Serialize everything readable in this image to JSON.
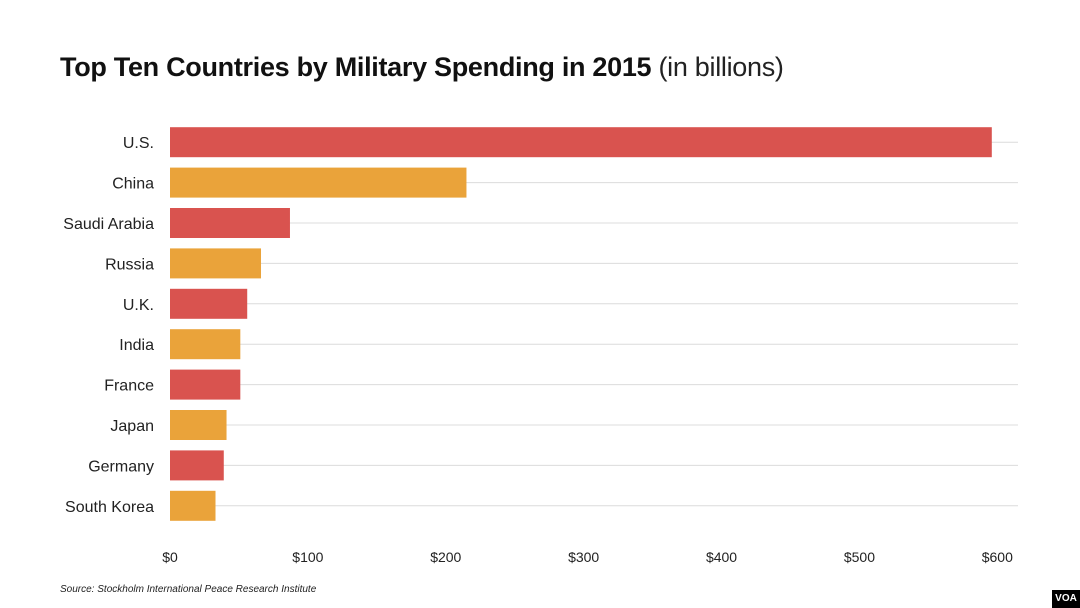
{
  "chart_data": {
    "type": "bar",
    "orientation": "horizontal",
    "title": "Top Ten Countries by Military Spending in 2015",
    "subtitle": "(in billions)",
    "categories": [
      "U.S.",
      "China",
      "Saudi Arabia",
      "Russia",
      "U.K.",
      "India",
      "France",
      "Japan",
      "Germany",
      "South Korea"
    ],
    "values": [
      596,
      215,
      87,
      66,
      56,
      51,
      51,
      41,
      39,
      33
    ],
    "bar_colors": [
      "#d9534f",
      "#eaa33a",
      "#d9534f",
      "#eaa33a",
      "#d9534f",
      "#eaa33a",
      "#d9534f",
      "#eaa33a",
      "#d9534f",
      "#eaa33a"
    ],
    "xticks": [
      0,
      100,
      200,
      300,
      400,
      500,
      600
    ],
    "xtick_labels": [
      "$0",
      "$100",
      "$200",
      "$300",
      "$400",
      "$500",
      "$600"
    ],
    "xlim": [
      0,
      615
    ],
    "xlabel": "",
    "ylabel": "",
    "grid": true
  },
  "source": "Source: Stockholm International Peace Research Institute",
  "logo": "VOA"
}
